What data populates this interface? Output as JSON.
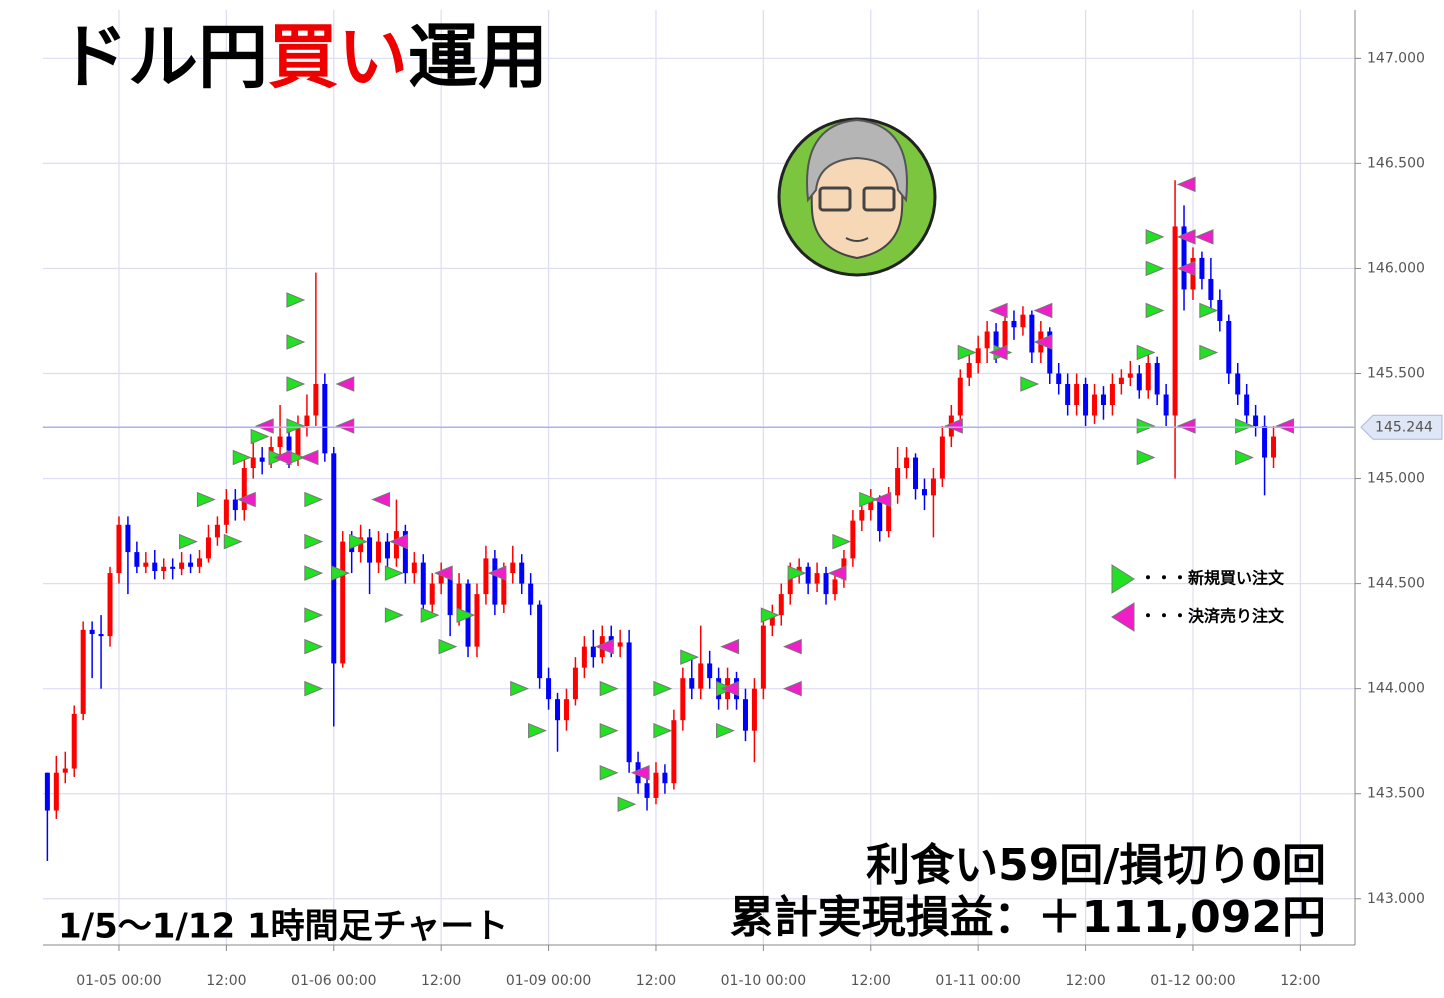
{
  "chart_data": {
    "type": "candlestick",
    "title_parts": [
      "ドル円",
      "買い",
      "運用"
    ],
    "period_note": "1/5〜1/12  1時間足チャート",
    "stats": [
      "利食い59回/損切り0回",
      "累計実現損益：＋111,092円"
    ],
    "legend": [
      "・・・新規買い注文",
      "・・・決済売り注文"
    ],
    "up_color": "#ff0000",
    "down_color": "#0000ff",
    "buy_color": "#22e022",
    "sell_color": "#f01ec8",
    "grid": true,
    "current_price": {
      "value": 145.244,
      "label": "145.244"
    },
    "ylim": [
      142.78,
      147.23
    ],
    "yticks": [
      {
        "value": 143.0,
        "label": "143.000"
      },
      {
        "value": 143.5,
        "label": "143.500"
      },
      {
        "value": 144.0,
        "label": "144.000"
      },
      {
        "value": 144.5,
        "label": "144.500"
      },
      {
        "value": 145.0,
        "label": "145.000"
      },
      {
        "value": 145.5,
        "label": "145.500"
      },
      {
        "value": 146.0,
        "label": "146.000"
      },
      {
        "value": 146.5,
        "label": "146.500"
      },
      {
        "value": 147.0,
        "label": "147.000"
      }
    ],
    "categories": [
      null,
      null,
      null,
      null,
      null,
      null,
      null,
      null,
      "01-05 00:00",
      null,
      null,
      null,
      null,
      null,
      null,
      null,
      null,
      null,
      null,
      null,
      "12:00",
      null,
      null,
      null,
      null,
      null,
      null,
      null,
      null,
      null,
      null,
      null,
      "01-06 00:00",
      null,
      null,
      null,
      null,
      null,
      null,
      null,
      null,
      null,
      null,
      null,
      "12:00",
      null,
      null,
      null,
      null,
      null,
      null,
      null,
      null,
      null,
      null,
      null,
      "01-09 00:00",
      null,
      null,
      null,
      null,
      null,
      null,
      null,
      null,
      null,
      null,
      null,
      "12:00",
      null,
      null,
      null,
      null,
      null,
      null,
      null,
      null,
      null,
      null,
      null,
      "01-10 00:00",
      null,
      null,
      null,
      null,
      null,
      null,
      null,
      null,
      null,
      null,
      null,
      "12:00",
      null,
      null,
      null,
      null,
      null,
      null,
      null,
      null,
      null,
      null,
      null,
      "01-11 00:00",
      null,
      null,
      null,
      null,
      null,
      null,
      null,
      null,
      null,
      null,
      null,
      "12:00",
      null,
      null,
      null,
      null,
      null,
      null,
      null,
      null,
      null,
      null,
      null,
      "01-12 00:00",
      null,
      null,
      null,
      null,
      null,
      null,
      null,
      null,
      null,
      null,
      null,
      "12:00"
    ],
    "ohlc": [
      [
        143.6,
        143.6,
        143.18,
        143.42
      ],
      [
        143.42,
        143.68,
        143.38,
        143.6
      ],
      [
        143.6,
        143.7,
        143.55,
        143.62
      ],
      [
        143.62,
        143.92,
        143.58,
        143.88
      ],
      [
        143.88,
        144.32,
        143.85,
        144.28
      ],
      [
        144.28,
        144.32,
        144.05,
        144.26
      ],
      [
        144.26,
        144.35,
        144.0,
        144.25
      ],
      [
        144.25,
        144.58,
        144.2,
        144.55
      ],
      [
        144.55,
        144.82,
        144.5,
        144.78
      ],
      [
        144.78,
        144.82,
        144.45,
        144.65
      ],
      [
        144.65,
        144.7,
        144.55,
        144.58
      ],
      [
        144.58,
        144.65,
        144.55,
        144.6
      ],
      [
        144.6,
        144.66,
        144.52,
        144.56
      ],
      [
        144.56,
        144.62,
        144.52,
        144.58
      ],
      [
        144.58,
        144.62,
        144.52,
        144.57
      ],
      [
        144.57,
        144.65,
        144.54,
        144.6
      ],
      [
        144.6,
        144.64,
        144.55,
        144.58
      ],
      [
        144.58,
        144.66,
        144.55,
        144.62
      ],
      [
        144.62,
        144.78,
        144.6,
        144.72
      ],
      [
        144.72,
        144.82,
        144.68,
        144.78
      ],
      [
        144.78,
        144.95,
        144.74,
        144.9
      ],
      [
        144.9,
        144.95,
        144.8,
        144.85
      ],
      [
        144.85,
        145.1,
        144.8,
        145.05
      ],
      [
        145.05,
        145.2,
        145.0,
        145.1
      ],
      [
        145.1,
        145.15,
        145.02,
        145.08
      ],
      [
        145.08,
        145.2,
        145.05,
        145.15
      ],
      [
        145.15,
        145.35,
        145.1,
        145.2
      ],
      [
        145.2,
        145.25,
        145.05,
        145.1
      ],
      [
        145.1,
        145.3,
        145.06,
        145.25
      ],
      [
        145.25,
        145.4,
        145.2,
        145.3
      ],
      [
        145.3,
        145.98,
        145.25,
        145.45
      ],
      [
        145.45,
        145.5,
        145.08,
        145.12
      ],
      [
        145.12,
        145.15,
        143.82,
        144.12
      ],
      [
        144.12,
        144.75,
        144.1,
        144.7
      ],
      [
        144.7,
        144.75,
        144.55,
        144.65
      ],
      [
        144.65,
        144.78,
        144.6,
        144.72
      ],
      [
        144.72,
        144.76,
        144.45,
        144.6
      ],
      [
        144.6,
        144.75,
        144.55,
        144.7
      ],
      [
        144.7,
        144.74,
        144.58,
        144.62
      ],
      [
        144.62,
        144.9,
        144.58,
        144.75
      ],
      [
        144.75,
        144.78,
        144.5,
        144.55
      ],
      [
        144.55,
        144.65,
        144.5,
        144.6
      ],
      [
        144.6,
        144.64,
        144.35,
        144.4
      ],
      [
        144.4,
        144.55,
        144.36,
        144.5
      ],
      [
        144.5,
        144.6,
        144.45,
        144.55
      ],
      [
        144.55,
        144.58,
        144.25,
        144.35
      ],
      [
        144.35,
        144.55,
        144.3,
        144.5
      ],
      [
        144.5,
        144.52,
        144.15,
        144.2
      ],
      [
        144.2,
        144.5,
        144.15,
        144.45
      ],
      [
        144.45,
        144.68,
        144.4,
        144.62
      ],
      [
        144.62,
        144.66,
        144.35,
        144.4
      ],
      [
        144.4,
        144.6,
        144.36,
        144.55
      ],
      [
        144.55,
        144.68,
        144.5,
        144.6
      ],
      [
        144.6,
        144.64,
        144.45,
        144.5
      ],
      [
        144.5,
        144.55,
        144.35,
        144.4
      ],
      [
        144.4,
        144.42,
        144.0,
        144.05
      ],
      [
        144.05,
        144.1,
        143.9,
        143.95
      ],
      [
        143.95,
        143.98,
        143.7,
        143.85
      ],
      [
        143.85,
        144.0,
        143.8,
        143.95
      ],
      [
        143.95,
        144.15,
        143.92,
        144.1
      ],
      [
        144.1,
        144.25,
        144.05,
        144.2
      ],
      [
        144.2,
        144.28,
        144.1,
        144.15
      ],
      [
        144.15,
        144.3,
        144.12,
        144.25
      ],
      [
        144.25,
        144.3,
        144.15,
        144.2
      ],
      [
        144.2,
        144.28,
        144.15,
        144.22
      ],
      [
        144.22,
        144.28,
        143.6,
        143.65
      ],
      [
        143.65,
        143.7,
        143.5,
        143.55
      ],
      [
        143.55,
        143.6,
        143.42,
        143.48
      ],
      [
        143.48,
        143.65,
        143.45,
        143.6
      ],
      [
        143.6,
        143.64,
        143.5,
        143.55
      ],
      [
        143.55,
        143.9,
        143.52,
        143.85
      ],
      [
        143.85,
        144.1,
        143.8,
        144.05
      ],
      [
        144.05,
        144.15,
        143.95,
        144.0
      ],
      [
        144.0,
        144.3,
        143.95,
        144.12
      ],
      [
        144.12,
        144.18,
        144.0,
        144.05
      ],
      [
        144.05,
        144.1,
        143.9,
        143.95
      ],
      [
        143.95,
        144.1,
        143.9,
        144.05
      ],
      [
        144.05,
        144.08,
        143.9,
        143.95
      ],
      [
        143.95,
        144.0,
        143.75,
        143.8
      ],
      [
        143.8,
        144.05,
        143.65,
        144.0
      ],
      [
        144.0,
        144.35,
        143.95,
        144.3
      ],
      [
        144.3,
        144.4,
        144.25,
        144.35
      ],
      [
        144.35,
        144.5,
        144.3,
        144.45
      ],
      [
        144.45,
        144.6,
        144.4,
        144.55
      ],
      [
        144.55,
        144.62,
        144.5,
        144.58
      ],
      [
        144.58,
        144.6,
        144.45,
        144.5
      ],
      [
        144.5,
        144.6,
        144.46,
        144.55
      ],
      [
        144.55,
        144.58,
        144.4,
        144.45
      ],
      [
        144.45,
        144.56,
        144.42,
        144.52
      ],
      [
        144.52,
        144.66,
        144.48,
        144.62
      ],
      [
        144.62,
        144.85,
        144.58,
        144.8
      ],
      [
        144.8,
        144.9,
        144.75,
        144.85
      ],
      [
        144.85,
        144.95,
        144.8,
        144.9
      ],
      [
        144.9,
        144.92,
        144.7,
        144.75
      ],
      [
        144.75,
        144.96,
        144.72,
        144.92
      ],
      [
        144.92,
        145.15,
        144.88,
        145.05
      ],
      [
        145.05,
        145.15,
        145.0,
        145.1
      ],
      [
        145.1,
        145.12,
        144.9,
        144.95
      ],
      [
        144.95,
        145.0,
        144.85,
        144.92
      ],
      [
        144.92,
        145.05,
        144.72,
        145.0
      ],
      [
        145.0,
        145.25,
        144.96,
        145.2
      ],
      [
        145.2,
        145.35,
        145.15,
        145.3
      ],
      [
        145.3,
        145.52,
        145.25,
        145.48
      ],
      [
        145.48,
        145.6,
        145.44,
        145.55
      ],
      [
        145.55,
        145.68,
        145.5,
        145.62
      ],
      [
        145.62,
        145.75,
        145.55,
        145.7
      ],
      [
        145.7,
        145.74,
        145.55,
        145.62
      ],
      [
        145.62,
        145.8,
        145.58,
        145.75
      ],
      [
        145.75,
        145.8,
        145.66,
        145.72
      ],
      [
        145.72,
        145.82,
        145.68,
        145.78
      ],
      [
        145.78,
        145.8,
        145.55,
        145.6
      ],
      [
        145.6,
        145.75,
        145.55,
        145.7
      ],
      [
        145.7,
        145.72,
        145.45,
        145.5
      ],
      [
        145.5,
        145.55,
        145.4,
        145.45
      ],
      [
        145.45,
        145.5,
        145.3,
        145.35
      ],
      [
        145.35,
        145.5,
        145.3,
        145.45
      ],
      [
        145.45,
        145.48,
        145.25,
        145.3
      ],
      [
        145.3,
        145.45,
        145.26,
        145.4
      ],
      [
        145.4,
        145.44,
        145.28,
        145.35
      ],
      [
        145.35,
        145.5,
        145.3,
        145.45
      ],
      [
        145.45,
        145.52,
        145.4,
        145.48
      ],
      [
        145.48,
        145.56,
        145.44,
        145.5
      ],
      [
        145.5,
        145.54,
        145.38,
        145.42
      ],
      [
        145.42,
        145.6,
        145.38,
        145.55
      ],
      [
        145.55,
        145.58,
        145.35,
        145.4
      ],
      [
        145.4,
        145.45,
        145.25,
        145.3
      ],
      [
        145.3,
        146.42,
        145.0,
        146.2
      ],
      [
        146.2,
        146.3,
        145.8,
        145.9
      ],
      [
        145.9,
        146.1,
        145.85,
        146.05
      ],
      [
        146.05,
        146.08,
        145.9,
        145.95
      ],
      [
        145.95,
        146.05,
        145.8,
        145.85
      ],
      [
        145.85,
        145.9,
        145.7,
        145.75
      ],
      [
        145.75,
        145.78,
        145.45,
        145.5
      ],
      [
        145.5,
        145.55,
        145.35,
        145.4
      ],
      [
        145.4,
        145.45,
        145.25,
        145.3
      ],
      [
        145.3,
        145.35,
        145.2,
        145.25
      ],
      [
        145.25,
        145.3,
        144.92,
        145.1
      ],
      [
        145.1,
        145.25,
        145.05,
        145.2
      ],
      null,
      null,
      null
    ],
    "buy_orders": [
      null,
      null,
      null,
      null,
      null,
      null,
      null,
      null,
      null,
      null,
      null,
      null,
      null,
      null,
      null,
      null,
      null,
      [
        144.7
      ],
      null,
      [
        144.9
      ],
      null,
      null,
      [
        144.7
      ],
      [
        145.1
      ],
      null,
      [
        145.2
      ],
      null,
      [
        145.1
      ],
      null,
      [
        145.85,
        145.65,
        145.45,
        145.25,
        145.1
      ],
      null,
      [
        144.9,
        144.7,
        144.55,
        144.35,
        144.2,
        144.0
      ],
      null,
      null,
      [
        144.55
      ],
      null,
      [
        144.7
      ],
      null,
      null,
      null,
      [
        144.35,
        144.55
      ],
      null,
      null,
      null,
      [
        144.35
      ],
      null,
      [
        144.2
      ],
      null,
      [
        144.35
      ],
      null,
      null,
      null,
      null,
      null,
      [
        144.0
      ],
      null,
      [
        143.8
      ],
      null,
      null,
      null,
      null,
      null,
      null,
      null,
      [
        144.0,
        143.8,
        143.6
      ],
      null,
      [
        143.45
      ],
      null,
      null,
      null,
      [
        143.8,
        144.0
      ],
      null,
      null,
      [
        144.15
      ],
      null,
      null,
      null,
      [
        143.8,
        144.0
      ],
      null,
      null,
      null,
      null,
      [
        144.35
      ],
      null,
      null,
      [
        144.55
      ],
      null,
      null,
      null,
      null,
      [
        144.7
      ],
      null,
      null,
      [
        144.9
      ],
      null,
      null,
      null,
      null,
      null,
      null,
      null,
      null,
      null,
      null,
      [
        145.6
      ],
      null,
      null,
      null,
      [
        145.6
      ],
      null,
      null,
      [
        145.45
      ],
      null,
      null,
      null,
      null,
      null,
      null,
      null,
      null,
      null,
      null,
      null,
      null,
      [
        145.6,
        145.25,
        145.1
      ],
      [
        145.8,
        146.0,
        146.15
      ],
      null,
      null,
      null,
      null,
      null,
      [
        145.8,
        145.6
      ],
      null,
      null,
      null,
      [
        145.25,
        145.1
      ],
      null,
      null,
      null,
      null,
      null
    ],
    "sell_orders": [
      null,
      null,
      null,
      null,
      null,
      null,
      null,
      null,
      null,
      null,
      null,
      null,
      null,
      null,
      null,
      null,
      null,
      null,
      null,
      null,
      null,
      [
        144.9
      ],
      null,
      [
        145.25
      ],
      null,
      [
        145.1
      ],
      null,
      null,
      [
        145.1
      ],
      null,
      null,
      null,
      [
        145.45,
        145.25
      ],
      null,
      null,
      null,
      [
        144.9
      ],
      null,
      [
        144.7
      ],
      null,
      null,
      null,
      null,
      [
        144.55
      ],
      null,
      null,
      null,
      null,
      null,
      [
        144.55
      ],
      null,
      null,
      null,
      null,
      null,
      null,
      null,
      null,
      null,
      null,
      null,
      [
        144.2
      ],
      null,
      null,
      null,
      [
        143.6
      ],
      null,
      null,
      null,
      null,
      null,
      null,
      null,
      null,
      null,
      [
        144.2,
        144.0
      ],
      null,
      null,
      null,
      null,
      null,
      null,
      [
        144.2,
        144.0
      ],
      null,
      null,
      null,
      null,
      [
        144.55
      ],
      null,
      null,
      null,
      null,
      [
        144.9
      ],
      null,
      null,
      null,
      null,
      null,
      null,
      null,
      [
        145.25
      ],
      null,
      null,
      null,
      null,
      [
        145.8,
        145.6
      ],
      null,
      null,
      null,
      null,
      [
        145.8,
        145.65
      ],
      null,
      null,
      null,
      null,
      null,
      null,
      null,
      null,
      null,
      null,
      null,
      null,
      null,
      null,
      null,
      [
        146.4,
        146.15,
        146.0,
        145.25
      ],
      null,
      [
        146.15
      ],
      null,
      null,
      null,
      null,
      null,
      null,
      null,
      null,
      [
        145.25
      ],
      null,
      null,
      null
    ]
  }
}
